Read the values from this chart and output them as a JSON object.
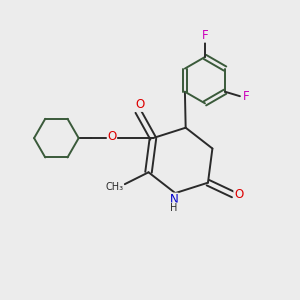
{
  "bg_color": "#ececec",
  "bond_color": "#2a2a2a",
  "bond_width": 1.4,
  "atom_colors": {
    "O": "#dd0000",
    "N": "#0000cc",
    "F": "#cc00bb",
    "C": "#2a2a2a"
  },
  "font_size_atom": 8.5,
  "ring_bond_color": "#3a5a3a"
}
